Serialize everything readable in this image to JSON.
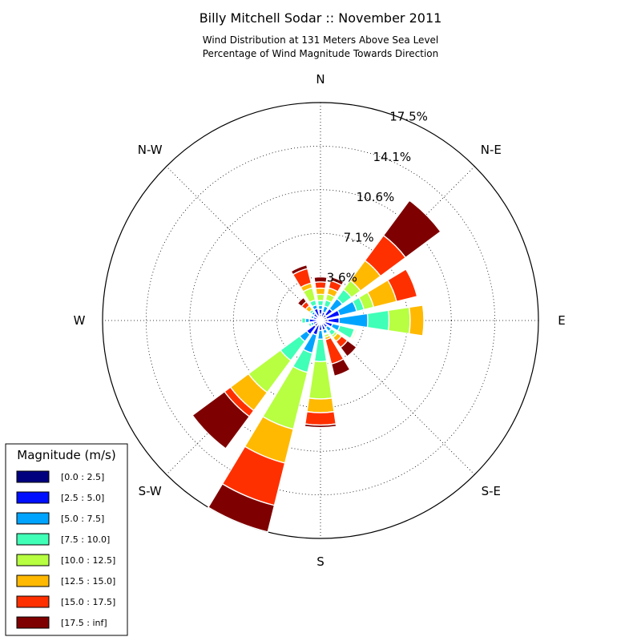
{
  "chart_data": {
    "type": "windrose",
    "title": "Billy Mitchell Sodar :: November 2011",
    "subtitle_lines": [
      "Wind Distribution at 131 Meters Above Sea Level",
      "Percentage of Wind Magnitude Towards Direction"
    ],
    "directions": [
      "N",
      "N-E",
      "E",
      "S-E",
      "S",
      "S-W",
      "W",
      "N-W"
    ],
    "ring_labels": [
      "3.6%",
      "7.1%",
      "10.6%",
      "14.1%",
      "17.5%"
    ],
    "r_max": 17.5,
    "legend_title": "Magnitude (m/s)",
    "legend_placement": "bottom-left",
    "grid": true,
    "bins": [
      "[0.0 : 2.5]",
      "[2.5 : 5.0]",
      "[5.0 : 7.5]",
      "[7.5 : 10.0]",
      "[10.0 : 12.5]",
      "[12.5 : 15.0]",
      "[15.0 : 17.5]",
      "[17.5 : inf]"
    ],
    "colors": [
      "#00007f",
      "#0010ff",
      "#00a4ff",
      "#40ffb7",
      "#b7ff40",
      "#ffb900",
      "#ff3000",
      "#7f0000"
    ],
    "sectors": [
      {
        "angle_deg": 0,
        "cumulative": [
          0.5,
          0.9,
          1.2,
          1.6,
          2.1,
          2.6,
          3.1,
          3.5
        ]
      },
      {
        "angle_deg": 22.5,
        "cumulative": [
          0.3,
          0.7,
          1.2,
          1.7,
          2.2,
          2.7,
          3.3,
          3.6
        ]
      },
      {
        "angle_deg": 45,
        "cumulative": [
          0.6,
          1.2,
          2.2,
          3.1,
          4.0,
          6.0,
          8.5,
          12.0
        ]
      },
      {
        "angle_deg": 67.5,
        "cumulative": [
          0.5,
          1.6,
          3.0,
          3.6,
          4.4,
          6.3,
          8.0,
          8.0
        ]
      },
      {
        "angle_deg": 90,
        "cumulative": [
          0.6,
          1.5,
          3.8,
          5.5,
          7.2,
          8.3,
          8.3,
          8.3
        ]
      },
      {
        "angle_deg": 112.5,
        "cumulative": [
          0.4,
          1.0,
          1.6,
          2.8,
          2.9,
          3.0,
          3.0,
          3.0
        ]
      },
      {
        "angle_deg": 135,
        "cumulative": [
          0.3,
          0.7,
          1.1,
          1.5,
          1.7,
          2.1,
          2.7,
          3.6
        ]
      },
      {
        "angle_deg": 157.5,
        "cumulative": [
          0.3,
          0.8,
          1.1,
          1.2,
          1.4,
          1.6,
          3.6,
          4.6
        ]
      },
      {
        "angle_deg": 180,
        "cumulative": [
          0.3,
          0.8,
          1.5,
          3.3,
          6.3,
          7.4,
          8.4,
          8.6
        ]
      },
      {
        "angle_deg": 202.5,
        "cumulative": [
          0.4,
          1.2,
          2.7,
          4.3,
          9.0,
          11.8,
          15.3,
          17.5
        ]
      },
      {
        "angle_deg": 225,
        "cumulative": [
          0.6,
          1.4,
          2.1,
          4.0,
          7.2,
          9.0,
          9.6,
          12.8
        ]
      },
      {
        "angle_deg": 247.5,
        "cumulative": [
          0.2,
          0.6,
          0.8,
          1.0,
          1.0,
          1.0,
          1.0,
          1.0
        ]
      },
      {
        "angle_deg": 270,
        "cumulative": [
          0.3,
          0.9,
          1.2,
          1.5,
          1.5,
          1.5,
          1.5,
          1.5
        ]
      },
      {
        "angle_deg": 292.5,
        "cumulative": [
          0.3,
          0.6,
          0.8,
          0.9,
          0.9,
          1.0,
          1.0,
          1.0
        ]
      },
      {
        "angle_deg": 315,
        "cumulative": [
          0.3,
          0.7,
          0.9,
          1.1,
          1.1,
          1.5,
          1.9,
          2.3
        ]
      },
      {
        "angle_deg": 337.5,
        "cumulative": [
          0.4,
          1.0,
          1.3,
          1.7,
          2.7,
          3.1,
          4.3,
          4.6
        ]
      }
    ]
  }
}
